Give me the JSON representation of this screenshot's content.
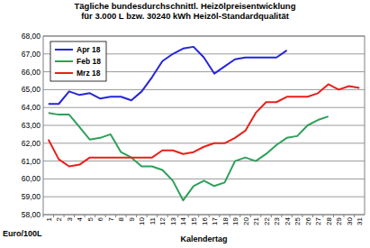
{
  "chart_data": {
    "type": "line",
    "title": [
      "Tägliche bundesdurchschnittl. Heizölpreisentwicklung",
      "für 3.000 L bzw. 30240 kWh Heizöl-Standardqualität"
    ],
    "x_label": "Kalendertag",
    "y_label": "Euro/100L",
    "categories": [
      "1",
      "2",
      "3",
      "4",
      "5",
      "6",
      "7",
      "8",
      "9",
      "10",
      "11",
      "12",
      "13",
      "14",
      "15",
      "16",
      "17",
      "18",
      "19",
      "20",
      "21",
      "22",
      "23",
      "24",
      "25",
      "26",
      "27",
      "28",
      "29",
      "30",
      "31"
    ],
    "series": [
      {
        "name": "Apr 18",
        "color": "#2626d6",
        "values": [
          64.2,
          64.2,
          64.9,
          64.7,
          64.8,
          64.5,
          64.6,
          64.6,
          64.4,
          64.9,
          65.7,
          66.6,
          67.0,
          67.3,
          67.4,
          66.8,
          65.9,
          66.3,
          66.7,
          66.8,
          66.8,
          66.8,
          66.8,
          67.2,
          null,
          null,
          null,
          null,
          null,
          null,
          null
        ]
      },
      {
        "name": "Feb 18",
        "color": "#2ea05a",
        "values": [
          63.7,
          63.6,
          63.6,
          62.9,
          62.2,
          62.3,
          62.5,
          61.5,
          61.2,
          60.7,
          60.7,
          60.5,
          59.9,
          58.8,
          59.6,
          59.9,
          59.6,
          59.8,
          61.0,
          61.2,
          61.0,
          61.4,
          61.9,
          62.3,
          62.4,
          63.0,
          63.3,
          63.5,
          null,
          null,
          null
        ]
      },
      {
        "name": "Mrz 18",
        "color": "#e8201c",
        "values": [
          62.2,
          61.1,
          60.7,
          60.8,
          61.2,
          61.2,
          61.2,
          61.2,
          61.2,
          61.2,
          61.2,
          61.6,
          61.6,
          61.4,
          61.5,
          61.8,
          62.0,
          62.0,
          62.3,
          62.7,
          63.7,
          64.3,
          64.3,
          64.6,
          64.6,
          64.6,
          64.8,
          65.3,
          65.0,
          65.2,
          65.1
        ]
      }
    ],
    "ylim": [
      58,
      68
    ],
    "yticks": [
      {
        "value": 58,
        "label": "58,00"
      },
      {
        "value": 59,
        "label": "59,00"
      },
      {
        "value": 60,
        "label": "60,00"
      },
      {
        "value": 61,
        "label": "61,00"
      },
      {
        "value": 62,
        "label": "62,00"
      },
      {
        "value": 63,
        "label": "63,00"
      },
      {
        "value": 64,
        "label": "64,00"
      },
      {
        "value": 65,
        "label": "65,00"
      },
      {
        "value": 66,
        "label": "66,00"
      },
      {
        "value": 67,
        "label": "67,00"
      },
      {
        "value": 68,
        "label": "68,00"
      }
    ],
    "grid": true,
    "legend": "top-left"
  }
}
